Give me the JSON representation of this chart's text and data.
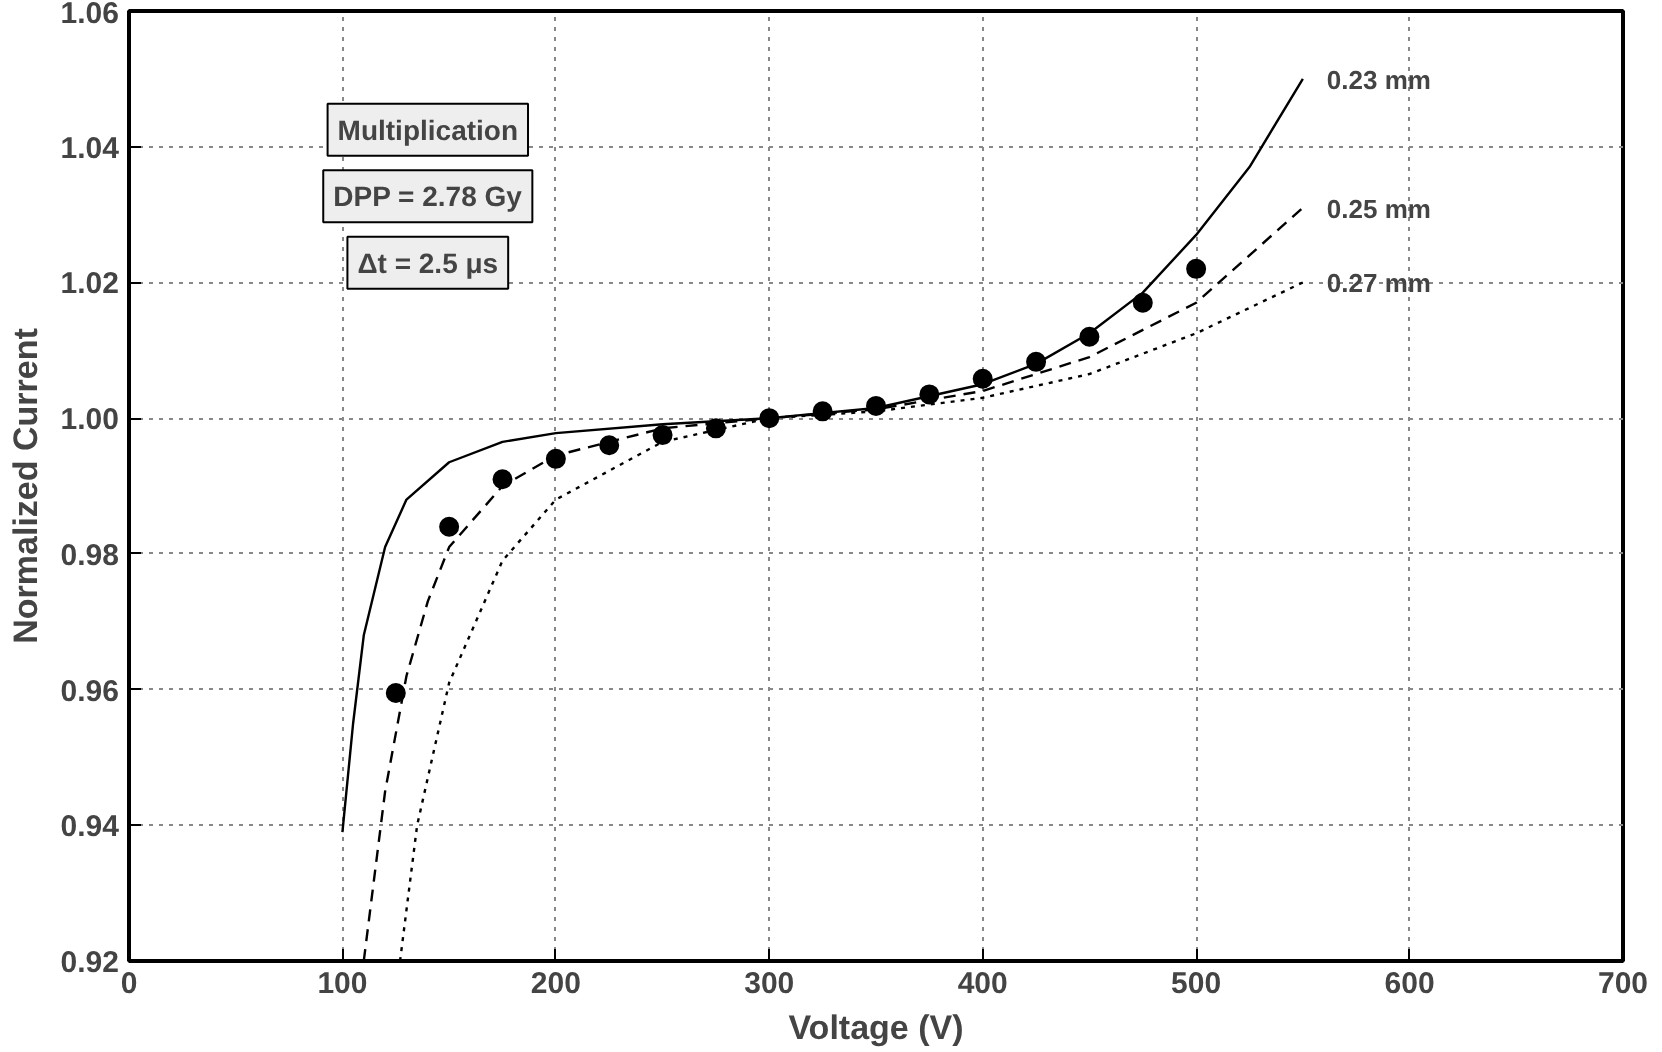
{
  "chart_data": {
    "type": "line",
    "xlabel": "Voltage (V)",
    "ylabel": "Normalized Current",
    "xlim": [
      0,
      700
    ],
    "ylim": [
      0.92,
      1.06
    ],
    "xticks": [
      0,
      100,
      200,
      300,
      400,
      500,
      600,
      700
    ],
    "yticks": [
      0.92,
      0.94,
      0.96,
      0.98,
      {
        "value": 1.0,
        "label": "1.00"
      },
      1.02,
      1.04,
      1.06
    ],
    "grid": true,
    "series": [
      {
        "name": "0.23 mm",
        "color": "#000000",
        "line_style": "solid",
        "marker": "none",
        "x": [
          100,
          105,
          110,
          120,
          130,
          150,
          175,
          200,
          250,
          300,
          350,
          400,
          425,
          450,
          475,
          500,
          525,
          550
        ],
        "values": [
          0.939,
          0.955,
          0.968,
          0.981,
          0.988,
          0.9935,
          0.9965,
          0.9978,
          0.9991,
          1.0,
          1.0015,
          1.005,
          1.008,
          1.0125,
          1.0185,
          1.027,
          1.037,
          1.05
        ]
      },
      {
        "name": "0.25 mm",
        "color": "#000000",
        "line_style": "dashed",
        "marker": "none",
        "x": [
          110,
          120,
          130,
          140,
          150,
          175,
          200,
          250,
          300,
          350,
          400,
          450,
          500,
          550
        ],
        "values": [
          0.92,
          0.945,
          0.962,
          0.973,
          0.981,
          0.99,
          0.9945,
          0.9985,
          1.0,
          1.0013,
          1.004,
          1.009,
          1.017,
          1.031
        ]
      },
      {
        "name": "0.27 mm",
        "color": "#000000",
        "line_style": "dotted",
        "marker": "none",
        "x": [
          127,
          135,
          150,
          175,
          200,
          250,
          300,
          350,
          400,
          450,
          500,
          550
        ],
        "values": [
          0.92,
          0.94,
          0.961,
          0.979,
          0.988,
          0.9965,
          1.0,
          1.001,
          1.003,
          1.0065,
          1.0125,
          1.02
        ]
      },
      {
        "type": "scatter",
        "color": "#000000",
        "marker": "circle",
        "x": [
          125,
          150,
          175,
          200,
          225,
          250,
          275,
          300,
          325,
          350,
          375,
          400,
          425,
          450,
          475,
          500
        ],
        "values": [
          0.9595,
          0.984,
          0.991,
          0.994,
          0.996,
          0.9975,
          0.9985,
          1.0,
          1.001,
          1.0018,
          1.0035,
          1.0058,
          1.0083,
          1.012,
          1.017,
          1.022
        ]
      }
    ],
    "annotations": [
      "Multiplication",
      "DPP = 2.78 Gy",
      "Δt = 2.5 μs"
    ]
  }
}
